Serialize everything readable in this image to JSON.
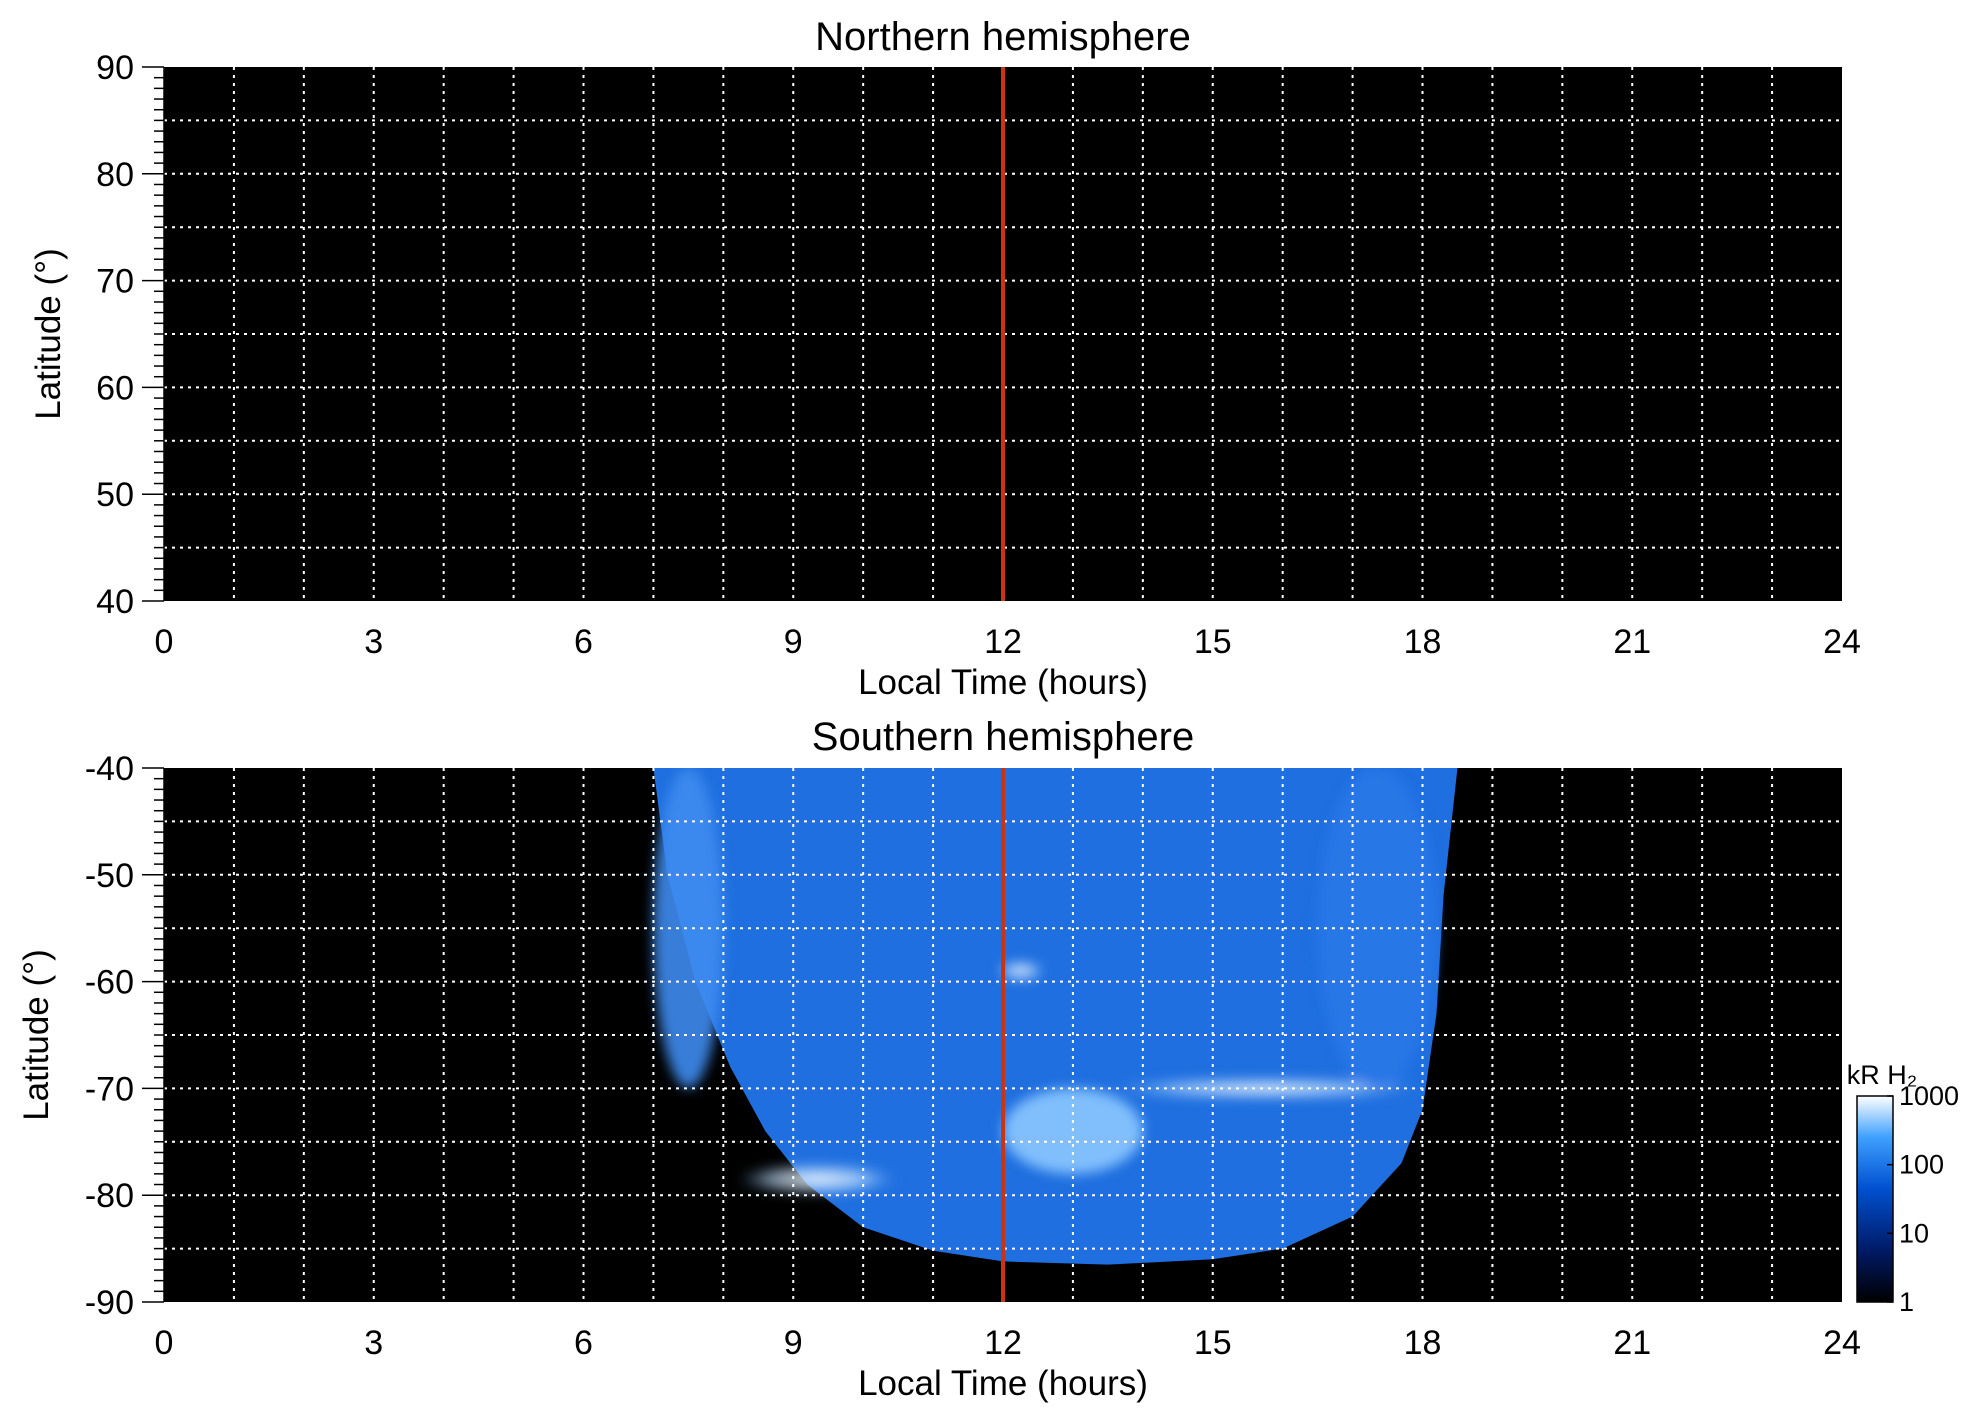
{
  "chart_data": [
    {
      "type": "heatmap",
      "title": "Northern hemisphere",
      "xlabel": "Local Time (hours)",
      "ylabel": "Latitude (°)",
      "xlim": [
        0,
        24
      ],
      "ylim": [
        40,
        90
      ],
      "xticks": [
        "0",
        "3",
        "6",
        "9",
        "12",
        "15",
        "18",
        "21",
        "24"
      ],
      "yticks": [
        "40",
        "50",
        "60",
        "70",
        "80",
        "90"
      ],
      "grid": true,
      "reference_line": {
        "x": 12,
        "color": "#cc3311"
      },
      "emission": "none visible",
      "background_color": "#000000"
    },
    {
      "type": "heatmap",
      "title": "Southern hemisphere",
      "xlabel": "Local Time (hours)",
      "ylabel": "Latitude (°)",
      "xlim": [
        0,
        24
      ],
      "ylim": [
        -90,
        -40
      ],
      "xticks": [
        "0",
        "3",
        "6",
        "9",
        "12",
        "15",
        "18",
        "21",
        "24"
      ],
      "yticks": [
        "-90",
        "-80",
        "-70",
        "-60",
        "-50",
        "-40"
      ],
      "grid": true,
      "reference_line": {
        "x": 12,
        "color": "#cc3311"
      },
      "observed_region": {
        "local_time_range": [
          7.0,
          18.5
        ],
        "lower_boundary": [
          [
            7.0,
            -40
          ],
          [
            7.2,
            -50
          ],
          [
            7.6,
            -60
          ],
          [
            8.1,
            -68
          ],
          [
            8.6,
            -74
          ],
          [
            9.2,
            -79
          ],
          [
            10.0,
            -83
          ],
          [
            11.0,
            -85.2
          ],
          [
            12.0,
            -86.2
          ],
          [
            13.5,
            -86.5
          ],
          [
            15.0,
            -86
          ],
          [
            16.0,
            -85
          ],
          [
            17.0,
            -82
          ],
          [
            17.7,
            -77
          ],
          [
            18.0,
            -72
          ],
          [
            18.2,
            -63
          ],
          [
            18.3,
            -52
          ],
          [
            18.5,
            -40
          ]
        ]
      },
      "features": [
        {
          "local_time": [
            13.5,
            18.0
          ],
          "latitude": [
            -71,
            -69
          ],
          "brightness_kR": 1000
        },
        {
          "local_time": [
            8.2,
            10.5
          ],
          "latitude": [
            -80,
            -77
          ],
          "brightness_kR": 1000
        },
        {
          "local_time": [
            11.9,
            12.6
          ],
          "latitude": [
            -60,
            -58
          ],
          "brightness_kR": 1000
        },
        {
          "local_time": [
            12.0,
            14.0
          ],
          "latitude": [
            -78,
            -70
          ],
          "brightness_kR": 300
        },
        {
          "local_time": [
            16.5,
            18.2
          ],
          "latitude": [
            -70,
            -40
          ],
          "brightness_kR": 60
        },
        {
          "local_time": [
            7.0,
            8.0
          ],
          "latitude": [
            -70,
            -40
          ],
          "brightness_kR": 80
        }
      ],
      "background_color": "#000000"
    }
  ],
  "colorbar": {
    "title": "kR H₂",
    "scale": "log",
    "range": [
      1,
      1000
    ],
    "ticks": [
      "1",
      "10",
      "100",
      "1000"
    ],
    "colors": [
      "#000000",
      "#001a66",
      "#0050d0",
      "#3fa0ff",
      "#ffffff"
    ]
  }
}
